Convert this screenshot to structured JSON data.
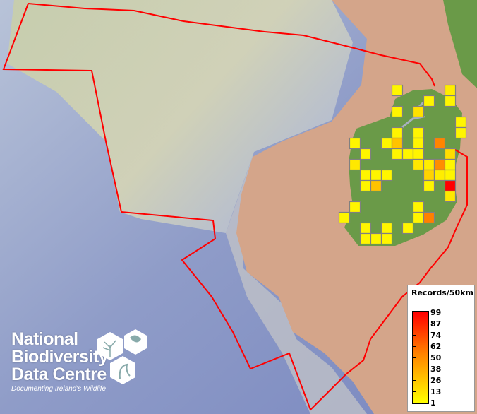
{
  "legend": {
    "title": "Records/50km",
    "labels": [
      "99",
      "87",
      "74",
      "62",
      "50",
      "38",
      "26",
      "13",
      "1"
    ],
    "color_low": "#ffff00",
    "color_mid": "#ff8000",
    "color_high": "#ff0000"
  },
  "logo": {
    "line1": "National",
    "line2": "Biodiversity",
    "line3": "Data Centre",
    "tagline": "Documenting Ireland's Wildlife"
  },
  "map": {
    "boundary_color": "#ff0000",
    "ocean_color": "#a8b4d0",
    "land_color": "#d4a58a",
    "ireland_color": "#6a9a48",
    "grid_cell_km": 50,
    "cells": [
      {
        "col": 5,
        "row": 0,
        "records": 5
      },
      {
        "col": 10,
        "row": 0,
        "records": 8
      },
      {
        "col": 8,
        "row": 1,
        "records": 5
      },
      {
        "col": 10,
        "row": 1,
        "records": 5
      },
      {
        "col": 5,
        "row": 2,
        "records": 5
      },
      {
        "col": 7,
        "row": 2,
        "records": 12
      },
      {
        "col": 11,
        "row": 3,
        "records": 5
      },
      {
        "col": 5,
        "row": 4,
        "records": 5
      },
      {
        "col": 7,
        "row": 4,
        "records": 5
      },
      {
        "col": 11,
        "row": 4,
        "records": 5
      },
      {
        "col": 1,
        "row": 5,
        "records": 5
      },
      {
        "col": 4,
        "row": 5,
        "records": 5
      },
      {
        "col": 5,
        "row": 5,
        "records": 24
      },
      {
        "col": 7,
        "row": 5,
        "records": 5
      },
      {
        "col": 9,
        "row": 5,
        "records": 48
      },
      {
        "col": 2,
        "row": 6,
        "records": 5
      },
      {
        "col": 5,
        "row": 6,
        "records": 5
      },
      {
        "col": 6,
        "row": 6,
        "records": 5
      },
      {
        "col": 7,
        "row": 6,
        "records": 5
      },
      {
        "col": 10,
        "row": 6,
        "records": 14
      },
      {
        "col": 1,
        "row": 7,
        "records": 10
      },
      {
        "col": 7,
        "row": 7,
        "records": 10
      },
      {
        "col": 8,
        "row": 7,
        "records": 8
      },
      {
        "col": 9,
        "row": 7,
        "records": 45
      },
      {
        "col": 10,
        "row": 7,
        "records": 5
      },
      {
        "col": 2,
        "row": 8,
        "records": 5
      },
      {
        "col": 3,
        "row": 8,
        "records": 5
      },
      {
        "col": 4,
        "row": 8,
        "records": 5
      },
      {
        "col": 8,
        "row": 8,
        "records": 18
      },
      {
        "col": 9,
        "row": 8,
        "records": 8
      },
      {
        "col": 10,
        "row": 8,
        "records": 5
      },
      {
        "col": 2,
        "row": 9,
        "records": 5
      },
      {
        "col": 3,
        "row": 9,
        "records": 24
      },
      {
        "col": 8,
        "row": 9,
        "records": 5
      },
      {
        "col": 10,
        "row": 9,
        "records": 99
      },
      {
        "col": 10,
        "row": 10,
        "records": 10
      },
      {
        "col": 1,
        "row": 11,
        "records": 5
      },
      {
        "col": 7,
        "row": 11,
        "records": 5
      },
      {
        "col": 0,
        "row": 12,
        "records": 5
      },
      {
        "col": 7,
        "row": 12,
        "records": 5
      },
      {
        "col": 8,
        "row": 12,
        "records": 50
      },
      {
        "col": 2,
        "row": 13,
        "records": 5
      },
      {
        "col": 4,
        "row": 13,
        "records": 5
      },
      {
        "col": 6,
        "row": 13,
        "records": 5
      },
      {
        "col": 2,
        "row": 14,
        "records": 5
      },
      {
        "col": 3,
        "row": 14,
        "records": 5
      },
      {
        "col": 4,
        "row": 14,
        "records": 5
      }
    ]
  }
}
